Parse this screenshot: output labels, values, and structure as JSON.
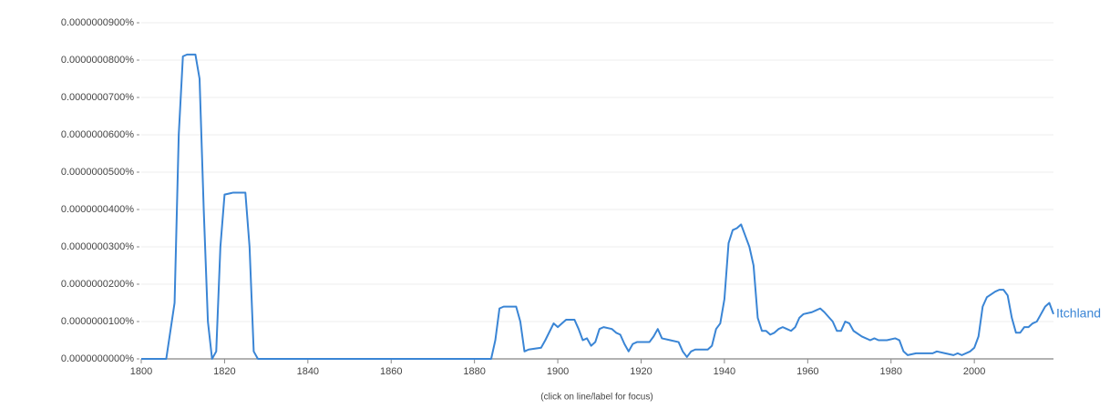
{
  "chart_data": {
    "type": "line",
    "note": "(click on line/label for focus)",
    "xlim": [
      1800,
      2019
    ],
    "xticks": [
      1800,
      1820,
      1840,
      1860,
      1880,
      1900,
      1920,
      1940,
      1960,
      1980,
      2000
    ],
    "ylim": [
      0,
      9e-08
    ],
    "yticks": [
      {
        "value": 0,
        "label": "0.0000000000%"
      },
      {
        "value": 1e-08,
        "label": "0.0000000100%"
      },
      {
        "value": 2e-08,
        "label": "0.0000000200%"
      },
      {
        "value": 3e-08,
        "label": "0.0000000300%"
      },
      {
        "value": 4e-08,
        "label": "0.0000000400%"
      },
      {
        "value": 5e-08,
        "label": "0.0000000500%"
      },
      {
        "value": 6e-08,
        "label": "0.0000000600%"
      },
      {
        "value": 7e-08,
        "label": "0.0000000700%"
      },
      {
        "value": 8e-08,
        "label": "0.0000000800%"
      },
      {
        "value": 9e-08,
        "label": "0.0000000900%"
      }
    ],
    "grid": true,
    "x": [
      1800,
      1806,
      1808,
      1809,
      1810,
      1811,
      1813,
      1814,
      1815,
      1816,
      1817,
      1818,
      1819,
      1820,
      1822,
      1825,
      1826,
      1827,
      1828,
      1884,
      1885,
      1886,
      1887,
      1890,
      1891,
      1892,
      1893,
      1896,
      1897,
      1899,
      1900,
      1901,
      1902,
      1904,
      1905,
      1906,
      1907,
      1908,
      1909,
      1910,
      1911,
      1913,
      1914,
      1915,
      1916,
      1917,
      1918,
      1919,
      1922,
      1923,
      1924,
      1925,
      1927,
      1929,
      1930,
      1931,
      1932,
      1933,
      1936,
      1937,
      1938,
      1939,
      1940,
      1941,
      1942,
      1943,
      1944,
      1945,
      1946,
      1947,
      1948,
      1949,
      1950,
      1951,
      1952,
      1953,
      1954,
      1955,
      1956,
      1957,
      1958,
      1959,
      1961,
      1962,
      1963,
      1964,
      1966,
      1967,
      1968,
      1969,
      1970,
      1971,
      1973,
      1975,
      1976,
      1977,
      1979,
      1981,
      1982,
      1983,
      1984,
      1986,
      1990,
      1991,
      1993,
      1995,
      1996,
      1997,
      1999,
      2000,
      2001,
      2002,
      2003,
      2005,
      2006,
      2007,
      2008,
      2009,
      2010,
      2011,
      2012,
      2013,
      2014,
      2015,
      2016,
      2017,
      2018,
      2019
    ],
    "series": [
      {
        "name": "Itchland",
        "color": "#3a85d5",
        "values": [
          0,
          0,
          1.5e-08,
          6e-08,
          8.1e-08,
          8.15e-08,
          8.15e-08,
          7.5e-08,
          4e-08,
          1e-08,
          0,
          2e-09,
          3e-08,
          4.4e-08,
          4.45e-08,
          4.45e-08,
          3e-08,
          2e-09,
          0,
          0,
          5e-09,
          1.35e-08,
          1.4e-08,
          1.4e-08,
          1e-08,
          2e-09,
          2.5e-09,
          3e-09,
          5e-09,
          9.5e-09,
          8.5e-09,
          9.5e-09,
          1.05e-08,
          1.05e-08,
          8e-09,
          5e-09,
          5.5e-09,
          3.5e-09,
          4.5e-09,
          8e-09,
          8.5e-09,
          8e-09,
          7e-09,
          6.5e-09,
          4e-09,
          2e-09,
          4e-09,
          4.5e-09,
          4.5e-09,
          6e-09,
          8e-09,
          5.5e-09,
          5e-09,
          4.5e-09,
          2e-09,
          5e-10,
          2e-09,
          2.5e-09,
          2.5e-09,
          3.5e-09,
          8e-09,
          9.5e-09,
          1.6e-08,
          3.1e-08,
          3.45e-08,
          3.5e-08,
          3.6e-08,
          3.3e-08,
          3e-08,
          2.5e-08,
          1.1e-08,
          7.5e-09,
          7.5e-09,
          6.5e-09,
          7e-09,
          8e-09,
          8.5e-09,
          8e-09,
          7.5e-09,
          8.5e-09,
          1.1e-08,
          1.2e-08,
          1.25e-08,
          1.3e-08,
          1.35e-08,
          1.25e-08,
          1e-08,
          7.5e-09,
          7.5e-09,
          1e-08,
          9.5e-09,
          7.5e-09,
          6e-09,
          5e-09,
          5.5e-09,
          5e-09,
          5e-09,
          5.5e-09,
          5e-09,
          2e-09,
          1e-09,
          1.5e-09,
          1.5e-09,
          2e-09,
          1.5e-09,
          1e-09,
          1.5e-09,
          1e-09,
          2e-09,
          3e-09,
          6e-09,
          1.4e-08,
          1.65e-08,
          1.8e-08,
          1.85e-08,
          1.85e-08,
          1.7e-08,
          1.1e-08,
          7e-09,
          7e-09,
          8.5e-09,
          8.5e-09,
          9.5e-09,
          1e-08,
          1.2e-08,
          1.4e-08,
          1.5e-08,
          1.2e-08
        ]
      }
    ]
  }
}
